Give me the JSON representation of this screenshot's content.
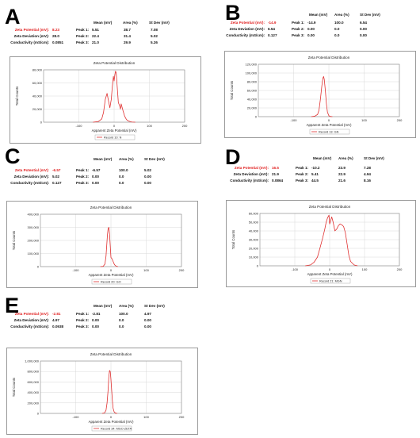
{
  "panels": [
    {
      "letter": "A",
      "zeta_label": "Zeta Potential (mV):",
      "zeta_value": "8.23",
      "deviation_label": "Zeta Deviation (mV):",
      "deviation_value": "28.0",
      "conductivity_label": "Conductivity (mS/cm):",
      "conductivity_value": "0.0851",
      "headers": [
        "Mean (mV)",
        "Area (%)",
        "St Dev (mV)"
      ],
      "peaks": [
        {
          "label": "Peak 1:",
          "mean": "5.51",
          "area": "38.7",
          "stdev": "7.08"
        },
        {
          "label": "Peak 2:",
          "mean": "22.4",
          "area": "31.4",
          "stdev": "5.02"
        },
        {
          "label": "Peak 3:",
          "mean": "21.0",
          "area": "29.9",
          "stdev": "5.26"
        }
      ]
    },
    {
      "letter": "B",
      "zeta_label": "Zeta Potential (mV):",
      "zeta_value": "-14.9",
      "deviation_label": "Zeta Deviation (mV):",
      "deviation_value": "6.54",
      "conductivity_label": "Conductivity (mS/cm):",
      "conductivity_value": "0.127",
      "headers": [
        "Mean (mV)",
        "Area (%)",
        "St Dev (mV)"
      ],
      "peaks": [
        {
          "label": "Peak 1:",
          "mean": "-14.9",
          "area": "100.0",
          "stdev": "6.54"
        },
        {
          "label": "Peak 2:",
          "mean": "0.00",
          "area": "0.0",
          "stdev": "0.00"
        },
        {
          "label": "Peak 3:",
          "mean": "0.00",
          "area": "0.0",
          "stdev": "0.00"
        }
      ]
    },
    {
      "letter": "C",
      "zeta_label": "Zeta Potential (mV):",
      "zeta_value": "-6.57",
      "deviation_label": "Zeta Deviation (mV):",
      "deviation_value": "5.02",
      "conductivity_label": "Conductivity (mS/cm):",
      "conductivity_value": "0.127",
      "headers": [
        "Mean (mV)",
        "Area (%)",
        "St Dev (mV)"
      ],
      "peaks": [
        {
          "label": "Peak 1:",
          "mean": "-6.57",
          "area": "100.0",
          "stdev": "5.02"
        },
        {
          "label": "Peak 2:",
          "mean": "0.00",
          "area": "0.0",
          "stdev": "0.00"
        },
        {
          "label": "Peak 3:",
          "mean": "0.00",
          "area": "0.0",
          "stdev": "0.00"
        }
      ]
    },
    {
      "letter": "D",
      "zeta_label": "Zeta Potential (mV):",
      "zeta_value": "16.5",
      "deviation_label": "Zeta Deviation (mV):",
      "deviation_value": "21.9",
      "conductivity_label": "Conductivity (mS/cm):",
      "conductivity_value": "0.0864",
      "headers": [
        "Mean (mV)",
        "Area (%)",
        "St Dev (mV)"
      ],
      "peaks": [
        {
          "label": "Peak 1:",
          "mean": "-10.2",
          "area": "23.9",
          "stdev": "7.28"
        },
        {
          "label": "Peak 2:",
          "mean": "5.41",
          "area": "22.9",
          "stdev": "4.94"
        },
        {
          "label": "Peak 3:",
          "mean": "44.5",
          "area": "21.6",
          "stdev": "8.16"
        }
      ]
    },
    {
      "letter": "E",
      "zeta_label": "Zeta Potential (mV):",
      "zeta_value": "-2.81",
      "deviation_label": "Zeta Deviation (mV):",
      "deviation_value": "4.97",
      "conductivity_label": "Conductivity (mS/cm):",
      "conductivity_value": "0.0938",
      "headers": [
        "Mean (mV)",
        "Area (%)",
        "St Dev (mV)"
      ],
      "peaks": [
        {
          "label": "Peak 1:",
          "mean": "-2.81",
          "area": "100.0",
          "stdev": "4.97"
        },
        {
          "label": "Peak 2:",
          "mean": "0.00",
          "area": "0.0",
          "stdev": "0.00"
        },
        {
          "label": "Peak 3:",
          "mean": "0.00",
          "area": "0.0",
          "stdev": "0.00"
        }
      ]
    }
  ],
  "colors": {
    "series": "#e03030",
    "accent_text": "#e02020",
    "grid": "#d8d8d8"
  },
  "chart_data": [
    {
      "type": "line",
      "title": "Zeta Potential Distribution",
      "xlabel": "Apparent Zeta Potential (mV)",
      "ylabel": "Total Counts",
      "xlim": [
        -200,
        200
      ],
      "xticks": [
        -100,
        0,
        100,
        200
      ],
      "ylim": [
        0,
        80000
      ],
      "yticks": [
        0,
        20000,
        40000,
        60000,
        80000
      ],
      "ytick_labels": [
        "0",
        "20,000",
        "40,000",
        "60,000",
        "80,000"
      ],
      "grid": true,
      "legend": "bottom",
      "series": [
        {
          "name": "Record 10: N",
          "x": [
            -60,
            -45,
            -35,
            -30,
            -25,
            -20,
            -15,
            -12,
            -8,
            -5,
            -2,
            0,
            2,
            4,
            6,
            8,
            10,
            12,
            15,
            18,
            20,
            22,
            25,
            30,
            35,
            40,
            45,
            50,
            60
          ],
          "y": [
            0,
            1000,
            5000,
            15000,
            35000,
            44000,
            30000,
            22000,
            35000,
            55000,
            70000,
            63000,
            72000,
            78000,
            75000,
            60000,
            45000,
            30000,
            26000,
            20000,
            28000,
            24000,
            18000,
            9000,
            4000,
            2000,
            1000,
            300,
            0
          ]
        }
      ]
    },
    {
      "type": "line",
      "title": "Zeta Potential Distribution",
      "xlabel": "Apparent Zeta Potential (mV)",
      "ylabel": "Total Counts",
      "xlim": [
        -200,
        200
      ],
      "xticks": [
        -100,
        0,
        100,
        200
      ],
      "ylim": [
        0,
        120000
      ],
      "yticks": [
        0,
        20000,
        40000,
        60000,
        80000,
        100000,
        120000
      ],
      "ytick_labels": [
        "0",
        "20,000",
        "40,000",
        "60,000",
        "80,000",
        "100,000",
        "120,000"
      ],
      "grid": true,
      "legend": "bottom",
      "series": [
        {
          "name": "Record 13: GN",
          "x": [
            -50,
            -40,
            -32,
            -28,
            -24,
            -20,
            -17,
            -15,
            -13,
            -10,
            -7,
            -4,
            0,
            5,
            10
          ],
          "y": [
            0,
            1000,
            5000,
            15000,
            40000,
            70000,
            88000,
            92000,
            85000,
            60000,
            30000,
            10000,
            2000,
            300,
            0
          ]
        }
      ]
    },
    {
      "type": "line",
      "title": "Zeta Potential Distribution",
      "xlabel": "Apparent Zeta Potential (mV)",
      "ylabel": "Total Counts",
      "xlim": [
        -200,
        200
      ],
      "xticks": [
        -100,
        0,
        100,
        200
      ],
      "ylim": [
        0,
        400000
      ],
      "yticks": [
        0,
        100000,
        200000,
        300000,
        400000
      ],
      "ytick_labels": [
        "0",
        "100,000",
        "200,000",
        "300,000",
        "400,000"
      ],
      "grid": true,
      "legend": "bottom",
      "series": [
        {
          "name": "Record 20: GO",
          "x": [
            -30,
            -22,
            -17,
            -14,
            -12,
            -10,
            -8,
            -6,
            -4,
            -2,
            0,
            3,
            6,
            10,
            15,
            20
          ],
          "y": [
            0,
            2000,
            20000,
            80000,
            160000,
            240000,
            290000,
            300000,
            250000,
            160000,
            70000,
            60000,
            40000,
            15000,
            3000,
            0
          ]
        }
      ]
    },
    {
      "type": "line",
      "title": "Zeta Potential Distribution",
      "xlabel": "Apparent Zeta Potential (mV)",
      "ylabel": "Total Counts",
      "xlim": [
        -200,
        200
      ],
      "xticks": [
        -100,
        0,
        100,
        200
      ],
      "ylim": [
        0,
        60000
      ],
      "yticks": [
        0,
        10000,
        20000,
        30000,
        40000,
        50000,
        60000
      ],
      "ytick_labels": [
        "0",
        "10,000",
        "20,000",
        "30,000",
        "40,000",
        "50,000",
        "60,000"
      ],
      "grid": true,
      "legend": "bottom",
      "series": [
        {
          "name": "Record 21: MGN",
          "x": [
            -70,
            -55,
            -45,
            -35,
            -28,
            -20,
            -14,
            -10,
            -6,
            -2,
            0,
            3,
            6,
            10,
            15,
            20,
            25,
            30,
            35,
            40,
            45,
            50,
            55,
            60,
            70,
            80
          ],
          "y": [
            0,
            1000,
            4000,
            10000,
            20000,
            32000,
            42000,
            50000,
            55000,
            58000,
            48000,
            52000,
            56000,
            50000,
            40000,
            42000,
            46000,
            48000,
            47000,
            45000,
            38000,
            25000,
            12000,
            5000,
            1000,
            0
          ]
        }
      ]
    },
    {
      "type": "line",
      "title": "Zeta Potential Distribution",
      "xlabel": "Apparent Zeta Potential (mV)",
      "ylabel": "Total Counts",
      "xlim": [
        -200,
        200
      ],
      "xticks": [
        -100,
        0,
        100,
        200
      ],
      "ylim": [
        0,
        1000000
      ],
      "yticks": [
        0,
        200000,
        400000,
        600000,
        800000,
        1000000
      ],
      "ytick_labels": [
        "0",
        "200,000",
        "400,000",
        "600,000",
        "800,000",
        "1,000,000"
      ],
      "grid": true,
      "legend": "bottom",
      "series": [
        {
          "name": "Record 34: MGO ZETA",
          "x": [
            -25,
            -18,
            -14,
            -11,
            -8,
            -6,
            -4,
            -2,
            0,
            2,
            4,
            6,
            9,
            13,
            18
          ],
          "y": [
            0,
            10000,
            60000,
            200000,
            450000,
            700000,
            820000,
            800000,
            650000,
            450000,
            250000,
            100000,
            30000,
            5000,
            0
          ]
        }
      ]
    }
  ]
}
